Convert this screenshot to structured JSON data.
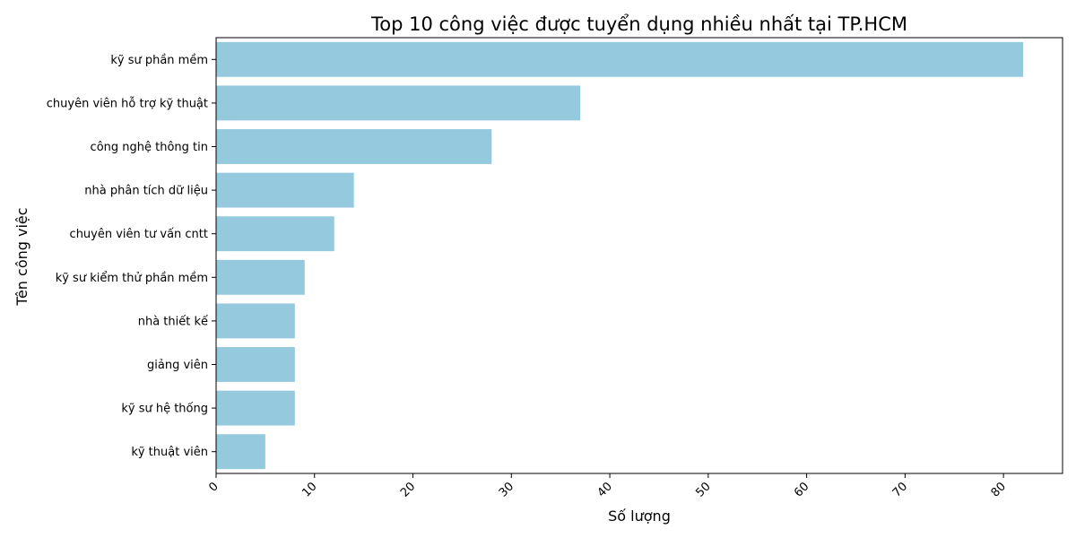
{
  "chart_data": {
    "type": "bar",
    "orientation": "horizontal",
    "title": "Top 10 công việc được tuyển dụng nhiều nhất tại TP.HCM",
    "xlabel": "Số lượng",
    "ylabel": "Tên công việc",
    "categories": [
      "kỹ sư phần mềm",
      "chuyên viên hỗ trợ kỹ thuật",
      "công nghệ thông tin",
      "nhà phân tích dữ liệu",
      "chuyên viên tư vấn cntt",
      "kỹ sư kiểm thử phần mềm",
      "nhà thiết kế",
      "giảng viên",
      "kỹ sư hệ thống",
      "kỹ thuật viên"
    ],
    "values": [
      82,
      37,
      28,
      14,
      12,
      9,
      8,
      8,
      8,
      5
    ],
    "xlim": [
      0,
      86
    ],
    "xticks": [
      0,
      10,
      20,
      30,
      40,
      50,
      60,
      70,
      80
    ],
    "bar_color": "#95c9de",
    "grid": false
  }
}
